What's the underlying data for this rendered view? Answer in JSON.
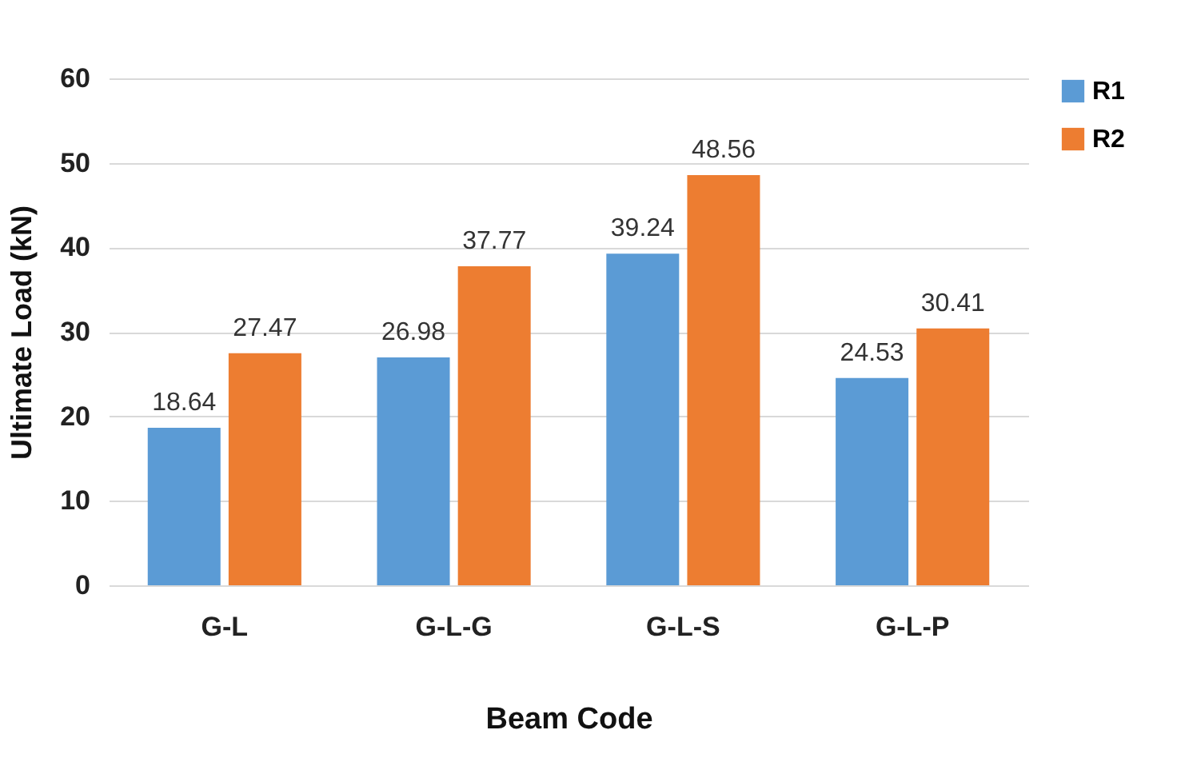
{
  "chart_data": {
    "type": "bar",
    "xlabel": "Beam Code",
    "ylabel": "Ultimate Load (kN)",
    "categories": [
      "G-L",
      "G-L-G",
      "G-L-S",
      "G-L-P"
    ],
    "series": [
      {
        "name": "R1",
        "color": "#5b9bd5",
        "values": [
          18.64,
          26.98,
          39.24,
          24.53
        ]
      },
      {
        "name": "R2",
        "color": "#ed7d31",
        "values": [
          27.47,
          37.77,
          48.56,
          30.41
        ]
      }
    ],
    "ylim": [
      0,
      60
    ],
    "yticks": [
      0,
      10,
      20,
      30,
      40,
      50,
      60
    ],
    "grid": "y",
    "legend": "top right",
    "data_labels": true
  }
}
